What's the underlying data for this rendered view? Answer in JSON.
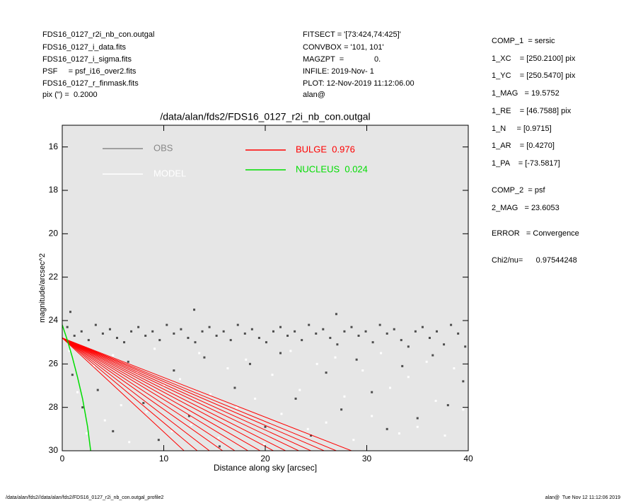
{
  "header": {
    "left": [
      "FDS16_0127_r2i_nb_con.outgal",
      "FDS16_0127_i_data.fits",
      "FDS16_0127_i_sigma.fits",
      "PSF     = psf_i16_over2.fits",
      "FDS16_0127_r_finmask.fits",
      "pix (\") =  0.2000"
    ],
    "middle": [
      "FITSECT = '[73:424,74:425]'",
      "CONVBOX = '101, 101'",
      "MAGZPT  =              0.",
      "INFILE: 2019-Nov- 1",
      "PLOT: 12-Nov-2019 11:12:06.00",
      "alan@"
    ],
    "right": [
      "COMP_1  = sersic",
      "1_XC    = [250.2100] pix",
      "1_YC    = [250.5470] pix",
      "1_MAG   = 19.5752",
      "1_RE    = [46.7588] pix",
      "1_N     = [0.9715]",
      "1_AR    = [0.4270]",
      "1_PA    = [-73.5817]",
      "COMP_2  = psf",
      "2_MAG   = 23.6053",
      "ERROR   = Convergence",
      "Chi2/nu=      0.97544248"
    ]
  },
  "footer": {
    "left": "/data/alan/fds2//data/alan/fds2/FDS16_0127_r2i_nb_con.outgal_profile2",
    "right": "alan@  Tue Nov 12 11:12:06 2019"
  },
  "chart_data": {
    "type": "scatter",
    "title": "/data/alan/fds2/FDS16_0127_r2i_nb_con.outgal",
    "xlabel": "Distance along sky [arcsec]",
    "ylabel": "magnitude/arcsec^2",
    "xlim": [
      0,
      40
    ],
    "ylim": [
      15,
      30
    ],
    "y_inverted": true,
    "xticks": [
      0,
      10,
      20,
      30,
      40
    ],
    "yticks": [
      16,
      18,
      20,
      22,
      24,
      26,
      28,
      30
    ],
    "background": "#e6e6e6",
    "series": [
      {
        "name": "OBS",
        "color": "#4d4d4d",
        "x": [
          0.5,
          1.2,
          1.9,
          2.6,
          3.3,
          4.0,
          4.7,
          5.4,
          6.1,
          6.8,
          7.5,
          8.2,
          8.9,
          9.6,
          10.3,
          11.0,
          11.7,
          12.4,
          13.1,
          13.8,
          14.5,
          15.2,
          15.9,
          16.6,
          17.3,
          18.0,
          18.7,
          19.4,
          20.1,
          20.8,
          21.5,
          22.2,
          22.9,
          23.6,
          24.3,
          25.0,
          25.7,
          26.4,
          27.1,
          27.8,
          28.5,
          29.2,
          29.9,
          30.6,
          31.3,
          32.0,
          32.7,
          33.4,
          34.1,
          34.8,
          35.5,
          36.2,
          36.9,
          37.6,
          38.3,
          39.0,
          39.7,
          1,
          2,
          3.5,
          5,
          6.5,
          8,
          9.5,
          11,
          12.5,
          14,
          15.5,
          17,
          18.5,
          20,
          21.5,
          23,
          24.5,
          26,
          27.5,
          29,
          30.5,
          32,
          33.5,
          35,
          36.5,
          38,
          39.5,
          13,
          27,
          0.8
        ],
        "values": [
          24.3,
          24.7,
          24.5,
          24.9,
          24.2,
          24.6,
          24.4,
          24.8,
          25.0,
          24.5,
          24.3,
          24.7,
          24.5,
          24.9,
          24.2,
          24.6,
          24.4,
          24.8,
          25.0,
          24.5,
          24.3,
          24.7,
          24.5,
          24.9,
          24.2,
          24.6,
          24.4,
          24.8,
          25.0,
          24.5,
          24.3,
          24.7,
          24.5,
          24.9,
          24.2,
          24.6,
          24.4,
          24.8,
          25.1,
          24.5,
          24.3,
          24.7,
          24.5,
          25.0,
          24.2,
          24.6,
          24.4,
          24.9,
          25.2,
          24.5,
          24.3,
          24.8,
          24.5,
          25.1,
          24.2,
          24.6,
          25.2,
          26.5,
          28,
          27.2,
          29.1,
          25.9,
          27.8,
          29.5,
          26.3,
          28.4,
          25.7,
          29.8,
          27.1,
          26.0,
          28.9,
          25.5,
          27.6,
          29.3,
          26.4,
          28.1,
          25.8,
          27.3,
          29.0,
          26.1,
          28.5,
          25.6,
          27.9,
          26.8,
          23.5,
          23.7,
          23.6
        ]
      },
      {
        "name": "MODEL",
        "color": "#ffffff",
        "x": [
          0.7,
          1.5,
          2.4,
          3.1,
          4.2,
          5.0,
          5.8,
          6.6,
          7.4,
          8.3,
          9.1,
          10.0,
          10.8,
          11.6,
          12.7,
          13.5,
          14.6,
          15.4,
          16.3,
          17.2,
          18.1,
          19.0,
          19.9,
          20.7,
          21.6,
          22.5,
          23.4,
          24.2,
          25.1,
          26.0,
          26.9,
          27.8,
          28.7,
          29.6,
          30.5,
          31.4,
          32.3,
          33.2,
          34.1,
          35.0,
          35.9,
          36.8,
          37.7,
          38.6,
          39.5
        ],
        "values": [
          25.4,
          27.3,
          29.2,
          26.1,
          28.6,
          25.6,
          27.9,
          29.6,
          26.4,
          28.2,
          25.3,
          27.0,
          29.1,
          26.7,
          28.8,
          25.5,
          27.4,
          29.4,
          26.2,
          28.0,
          25.8,
          27.6,
          29.7,
          26.5,
          28.3,
          25.4,
          27.2,
          29.0,
          26.0,
          28.7,
          25.7,
          27.5,
          29.5,
          26.3,
          28.4,
          25.5,
          27.1,
          29.2,
          26.6,
          28.9,
          25.9,
          27.7,
          29.3,
          26.2,
          28.1
        ]
      },
      {
        "name": "BULGE  0.976",
        "color": "#ff0000",
        "lines": [
          {
            "x": [
              0,
              12
            ],
            "values": [
              24.8,
              30
            ]
          },
          {
            "x": [
              0,
              13.3
            ],
            "values": [
              24.8,
              30
            ]
          },
          {
            "x": [
              0,
              14.5
            ],
            "values": [
              24.8,
              30
            ]
          },
          {
            "x": [
              0,
              15.8
            ],
            "values": [
              24.8,
              30
            ]
          },
          {
            "x": [
              0,
              17
            ],
            "values": [
              24.8,
              30
            ]
          },
          {
            "x": [
              0,
              18.3
            ],
            "values": [
              24.8,
              30
            ]
          },
          {
            "x": [
              0,
              19.5
            ],
            "values": [
              24.8,
              30
            ]
          },
          {
            "x": [
              0,
              20.8
            ],
            "values": [
              24.8,
              30
            ]
          },
          {
            "x": [
              0,
              22
            ],
            "values": [
              24.8,
              30
            ]
          },
          {
            "x": [
              0,
              23.3
            ],
            "values": [
              24.8,
              30
            ]
          },
          {
            "x": [
              0,
              24.5
            ],
            "values": [
              24.8,
              30
            ]
          },
          {
            "x": [
              0,
              25.8
            ],
            "values": [
              24.8,
              30
            ]
          },
          {
            "x": [
              0,
              27
            ],
            "values": [
              24.8,
              30
            ]
          },
          {
            "x": [
              0,
              28.5
            ],
            "values": [
              24.8,
              30
            ]
          }
        ]
      },
      {
        "name": "NUCLEUS  0.024",
        "color": "#00dd00",
        "x": [
          0,
          0.5,
          1,
          1.5,
          2,
          2.5,
          2.8
        ],
        "values": [
          24.2,
          24.9,
          25.7,
          26.6,
          27.6,
          28.9,
          30
        ]
      }
    ]
  }
}
